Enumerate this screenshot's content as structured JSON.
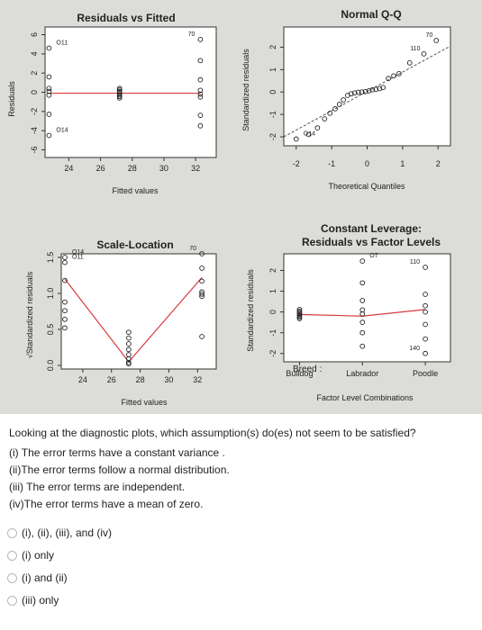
{
  "chart_data": [
    {
      "type": "scatter",
      "title": "Residuals vs Fitted",
      "xlabel": "Fitted values",
      "ylabel": "Residuals",
      "xlim": [
        22.5,
        33.3
      ],
      "ylim": [
        -6.8,
        6.8
      ],
      "xticks": [
        "24",
        "26",
        "28",
        "30",
        "32"
      ],
      "yticks": [
        "-6",
        "-4",
        "-2",
        "0",
        "2",
        "4",
        "6"
      ],
      "points": [
        {
          "x": 22.75,
          "y": 4.6
        },
        {
          "x": 22.75,
          "y": 1.6
        },
        {
          "x": 22.75,
          "y": 0.4
        },
        {
          "x": 22.75,
          "y": 0.1
        },
        {
          "x": 22.75,
          "y": -0.3
        },
        {
          "x": 22.75,
          "y": -2.3
        },
        {
          "x": 22.75,
          "y": -4.5
        },
        {
          "x": 27.2,
          "y": 0.4
        },
        {
          "x": 27.2,
          "y": 0.25
        },
        {
          "x": 27.2,
          "y": 0.1
        },
        {
          "x": 27.2,
          "y": 0.0
        },
        {
          "x": 27.2,
          "y": -0.15
        },
        {
          "x": 27.2,
          "y": -0.3
        },
        {
          "x": 27.2,
          "y": -0.45
        },
        {
          "x": 27.2,
          "y": -0.6
        },
        {
          "x": 32.3,
          "y": 5.5
        },
        {
          "x": 32.3,
          "y": 3.3
        },
        {
          "x": 32.3,
          "y": 1.3
        },
        {
          "x": 32.3,
          "y": 0.2
        },
        {
          "x": 32.3,
          "y": -0.2
        },
        {
          "x": 32.3,
          "y": -0.5
        },
        {
          "x": 32.3,
          "y": -2.4
        },
        {
          "x": 32.3,
          "y": -3.5
        }
      ],
      "smooth": [
        {
          "x": 22.75,
          "y": -0.1
        },
        {
          "x": 27.2,
          "y": -0.1
        },
        {
          "x": 32.3,
          "y": -0.1
        }
      ],
      "labels": [
        {
          "text": "O11",
          "x": 22.75,
          "y": 4.6
        },
        {
          "text": "O14",
          "x": 22.75,
          "y": -4.5
        },
        {
          "text": "70",
          "x": 32.3,
          "y": 5.5
        }
      ]
    },
    {
      "type": "scatter",
      "title": "Normal Q-Q",
      "xlabel": "Theoretical Quantiles",
      "ylabel": "Standardized residuals",
      "xlim": [
        -2.35,
        2.35
      ],
      "ylim": [
        -2.4,
        2.9
      ],
      "xticks": [
        "-2",
        "-1",
        "0",
        "1",
        "2"
      ],
      "yticks": [
        "-2",
        "-1",
        "0",
        "1",
        "2"
      ],
      "points": [
        {
          "x": -2.0,
          "y": -2.1
        },
        {
          "x": -1.65,
          "y": -1.9
        },
        {
          "x": -1.4,
          "y": -1.6
        },
        {
          "x": -1.2,
          "y": -1.2
        },
        {
          "x": -1.05,
          "y": -0.95
        },
        {
          "x": -0.9,
          "y": -0.75
        },
        {
          "x": -0.78,
          "y": -0.55
        },
        {
          "x": -0.67,
          "y": -0.35
        },
        {
          "x": -0.55,
          "y": -0.15
        },
        {
          "x": -0.45,
          "y": -0.08
        },
        {
          "x": -0.35,
          "y": -0.04
        },
        {
          "x": -0.25,
          "y": -0.01
        },
        {
          "x": -0.15,
          "y": 0.0
        },
        {
          "x": -0.05,
          "y": 0.02
        },
        {
          "x": 0.05,
          "y": 0.05
        },
        {
          "x": 0.15,
          "y": 0.1
        },
        {
          "x": 0.25,
          "y": 0.12
        },
        {
          "x": 0.35,
          "y": 0.15
        },
        {
          "x": 0.45,
          "y": 0.2
        },
        {
          "x": 0.6,
          "y": 0.6
        },
        {
          "x": 0.75,
          "y": 0.72
        },
        {
          "x": 0.9,
          "y": 0.82
        },
        {
          "x": 1.2,
          "y": 1.3
        },
        {
          "x": 1.6,
          "y": 1.7
        },
        {
          "x": 1.95,
          "y": 2.3
        }
      ],
      "reference_line": [
        {
          "x": -2.35,
          "y": -2.0
        },
        {
          "x": 2.35,
          "y": 2.05
        }
      ],
      "labels": [
        {
          "text": "110",
          "x": 1.6,
          "y": 1.7
        },
        {
          "text": "70",
          "x": 1.95,
          "y": 2.3
        },
        {
          "text": "O14",
          "x": -2.0,
          "y": -2.1
        }
      ]
    },
    {
      "type": "scatter",
      "title": "Scale-Location",
      "xlabel": "Fitted values",
      "ylabel": "√Standardized residuals",
      "xlim": [
        22.5,
        33.3
      ],
      "ylim": [
        -0.05,
        1.55
      ],
      "xticks": [
        "24",
        "26",
        "28",
        "30",
        "32"
      ],
      "yticks": [
        "0.0",
        "0.5",
        "1.0",
        "1.5"
      ],
      "points": [
        {
          "x": 22.75,
          "y": 1.5
        },
        {
          "x": 22.75,
          "y": 1.43
        },
        {
          "x": 22.75,
          "y": 1.18
        },
        {
          "x": 22.75,
          "y": 0.88
        },
        {
          "x": 22.75,
          "y": 0.76
        },
        {
          "x": 22.75,
          "y": 0.64
        },
        {
          "x": 22.75,
          "y": 0.52
        },
        {
          "x": 27.2,
          "y": 0.46
        },
        {
          "x": 27.2,
          "y": 0.38
        },
        {
          "x": 27.2,
          "y": 0.3
        },
        {
          "x": 27.2,
          "y": 0.22
        },
        {
          "x": 27.2,
          "y": 0.15
        },
        {
          "x": 27.2,
          "y": 0.09
        },
        {
          "x": 27.2,
          "y": 0.04
        },
        {
          "x": 27.2,
          "y": 0.02
        },
        {
          "x": 32.3,
          "y": 1.55
        },
        {
          "x": 32.3,
          "y": 1.35
        },
        {
          "x": 32.3,
          "y": 1.17
        },
        {
          "x": 32.3,
          "y": 1.02
        },
        {
          "x": 32.3,
          "y": 0.99
        },
        {
          "x": 32.3,
          "y": 0.96
        },
        {
          "x": 32.3,
          "y": 0.4
        }
      ],
      "smooth": [
        {
          "x": 22.75,
          "y": 1.2
        },
        {
          "x": 27.2,
          "y": 0.05
        },
        {
          "x": 32.3,
          "y": 1.22
        }
      ],
      "labels": [
        {
          "text": "O14",
          "x": 22.75,
          "y": 1.5
        },
        {
          "text": "O11",
          "x": 22.75,
          "y": 1.43
        },
        {
          "text": "70",
          "x": 32.3,
          "y": 1.55
        }
      ]
    },
    {
      "type": "scatter",
      "title": "Constant Leverage:",
      "subtitle": "Residuals vs Factor Levels",
      "xlabel": "Factor Level Combinations",
      "ylabel": "Standardized residuals",
      "factor_label": "Breed :",
      "xlim": [
        0.75,
        3.4
      ],
      "ylim": [
        -2.4,
        2.8
      ],
      "categories": [
        "Bulldog",
        "Labrador",
        "Poodle"
      ],
      "yticks": [
        "-2",
        "-1",
        "0",
        "1",
        "2"
      ],
      "points": [
        {
          "x": 1,
          "y": 0.12
        },
        {
          "x": 1,
          "y": 0.04
        },
        {
          "x": 1,
          "y": -0.02
        },
        {
          "x": 1,
          "y": -0.08
        },
        {
          "x": 1,
          "y": -0.14
        },
        {
          "x": 1,
          "y": -0.2
        },
        {
          "x": 1,
          "y": -0.26
        },
        {
          "x": 1,
          "y": -0.32
        },
        {
          "x": 2,
          "y": 2.45
        },
        {
          "x": 2,
          "y": 1.4
        },
        {
          "x": 2,
          "y": 0.55
        },
        {
          "x": 2,
          "y": 0.1
        },
        {
          "x": 2,
          "y": -0.1
        },
        {
          "x": 2,
          "y": -0.5
        },
        {
          "x": 2,
          "y": -1.0
        },
        {
          "x": 2,
          "y": -1.65
        },
        {
          "x": 3,
          "y": 2.15
        },
        {
          "x": 3,
          "y": 0.85
        },
        {
          "x": 3,
          "y": 0.3
        },
        {
          "x": 3,
          "y": 0.0
        },
        {
          "x": 3,
          "y": -0.6
        },
        {
          "x": 3,
          "y": -1.3
        },
        {
          "x": 3,
          "y": -2.0
        }
      ],
      "smooth": [
        {
          "x": 1,
          "y": -0.12
        },
        {
          "x": 2,
          "y": -0.2
        },
        {
          "x": 3,
          "y": 0.12
        }
      ],
      "labels": [
        {
          "text": "O7",
          "x": 2,
          "y": 2.45
        },
        {
          "text": "110",
          "x": 3,
          "y": 2.15
        },
        {
          "text": "140",
          "x": 3,
          "y": -2.0
        }
      ]
    }
  ],
  "question": {
    "prompt": "Looking at the diagnostic plots, which assumption(s) do(es) not seem to be satisfied?",
    "statements": [
      "(i) The error terms have a constant variance .",
      "(ii)The error terms follow a normal distribution.",
      "(iii) The error terms are independent.",
      "(iv)The error terms have a mean of zero."
    ],
    "options": [
      "(i), (ii), (iii), and (iv)",
      "(i) only",
      "(i) and (ii)",
      "(iii) only"
    ]
  }
}
